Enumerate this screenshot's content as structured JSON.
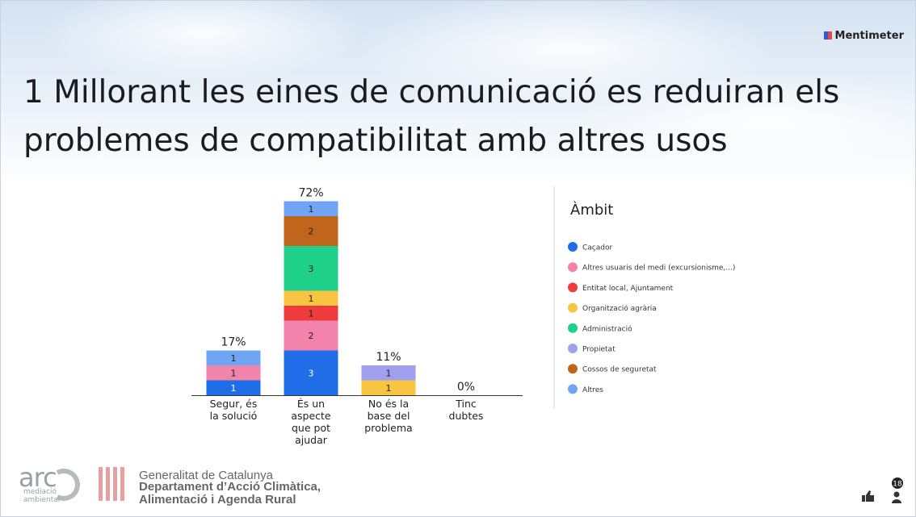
{
  "brand": "Mentimeter",
  "chart_data": {
    "type": "stacked-bar",
    "title": "1 Millorant les eines de comunicació es reduiran els problemes de compatibilitat amb altres usos",
    "categories": [
      "Segur, és\nla solució",
      "És un\naspecte\nque pot\najudar",
      "No és la\nbase del\nproblema",
      "Tinc\ndubtes"
    ],
    "legend_title": "Àmbit",
    "series": [
      {
        "name": "Caçador",
        "color": "#1f6ee8",
        "values": [
          1,
          3,
          null,
          null
        ]
      },
      {
        "name": "Altres usuaris del medi (excursionisme,...)",
        "color": "#f283ab",
        "values": [
          1,
          2,
          null,
          null
        ]
      },
      {
        "name": "Entitat local, Ajuntament",
        "color": "#ee3b3b",
        "values": [
          null,
          1,
          null,
          null
        ]
      },
      {
        "name": "Organització agrària",
        "color": "#f8c543",
        "values": [
          null,
          1,
          1,
          null
        ]
      },
      {
        "name": "Administració",
        "color": "#1fd08a",
        "values": [
          null,
          3,
          null,
          null
        ]
      },
      {
        "name": "Propietat",
        "color": "#a09ff0",
        "values": [
          null,
          null,
          1,
          null
        ]
      },
      {
        "name": "Cossos de seguretat",
        "color": "#c1651d",
        "values": [
          null,
          2,
          null,
          null
        ]
      },
      {
        "name": "Altres",
        "color": "#70a5f5",
        "values": [
          1,
          1,
          null,
          null
        ]
      }
    ],
    "totals": {
      "values": [
        17,
        72,
        11,
        0
      ],
      "value_labels": [
        "17%",
        "72%",
        "11%",
        "0%"
      ]
    }
  },
  "footer": {
    "logo": "arc",
    "logo_sub1": "mediació",
    "logo_sub2": "ambiental",
    "org": "Generalitat de Catalunya",
    "dept1": "Departament d’Acció Climàtica,",
    "dept2": "Alimentació i Agenda Rural"
  },
  "participants": "18"
}
